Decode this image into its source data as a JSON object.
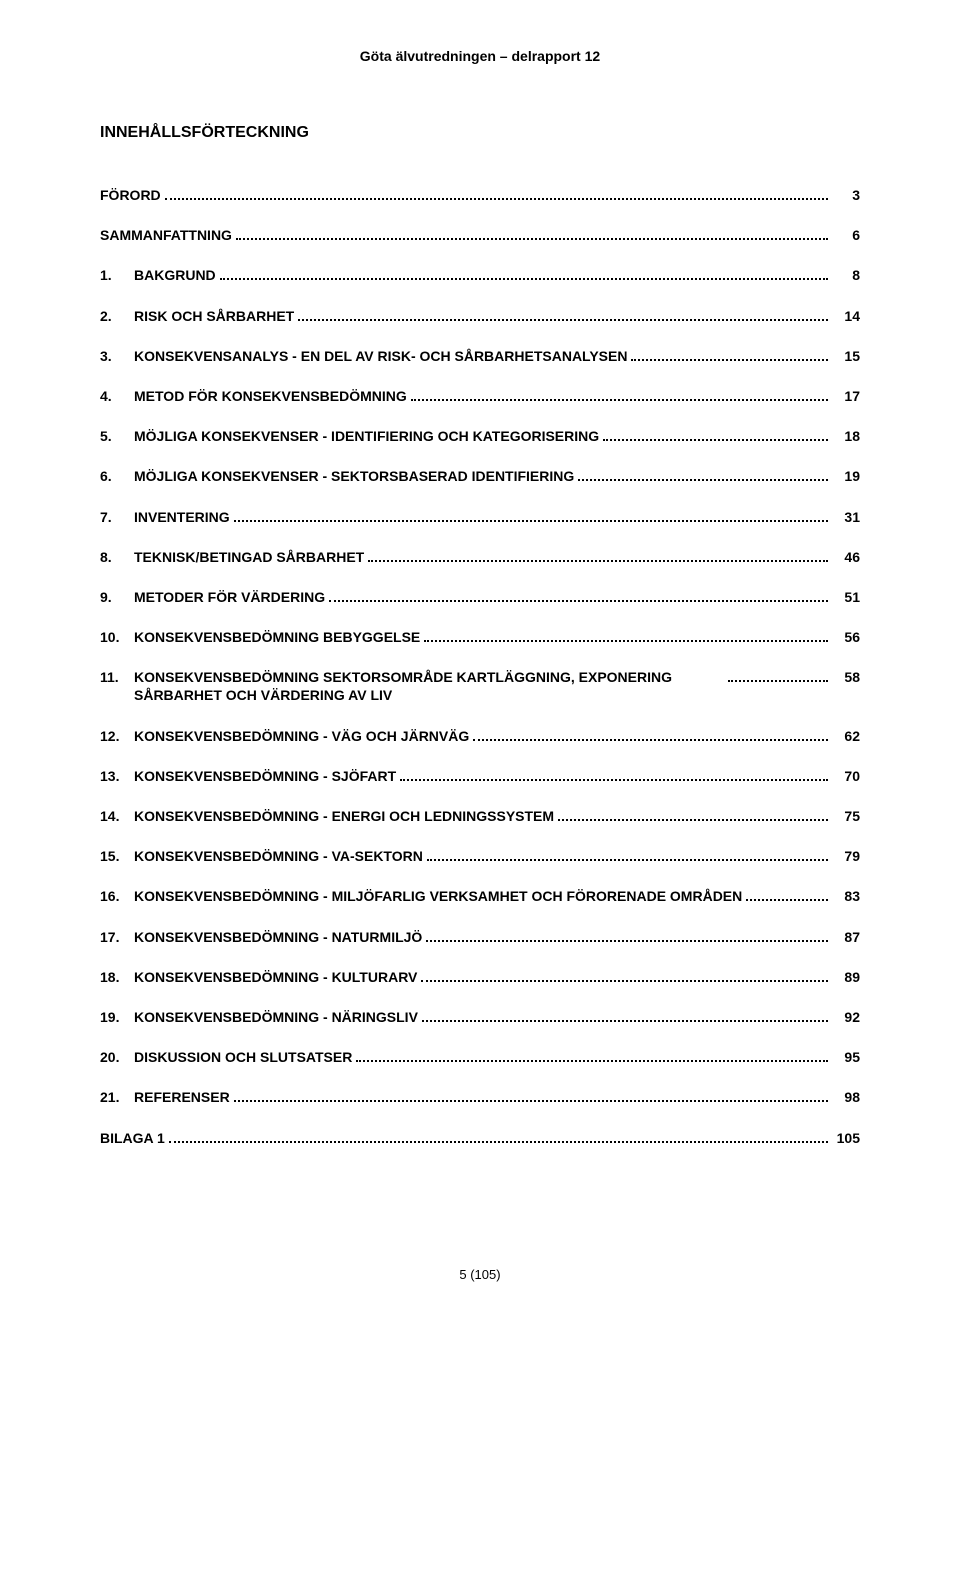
{
  "header": "Göta älvutredningen – delrapport 12",
  "title": "INNEHÅLLSFÖRTECKNING",
  "footer": "5 (105)",
  "toc": [
    {
      "num": "",
      "text": "FÖRORD",
      "page": "3",
      "noNum": true
    },
    {
      "num": "",
      "text": "SAMMANFATTNING",
      "page": "6",
      "noNum": true
    },
    {
      "num": "1.",
      "text": "BAKGRUND",
      "page": "8"
    },
    {
      "num": "2.",
      "text": "RISK OCH SÅRBARHET",
      "page": "14"
    },
    {
      "num": "3.",
      "text": "KONSEKVENSANALYS - EN DEL AV RISK- OCH SÅRBARHETSANALYSEN",
      "page": "15"
    },
    {
      "num": "4.",
      "text": "METOD FÖR KONSEKVENSBEDÖMNING",
      "page": "17"
    },
    {
      "num": "5.",
      "text": "MÖJLIGA KONSEKVENSER - IDENTIFIERING OCH KATEGORISERING",
      "page": "18"
    },
    {
      "num": "6.",
      "text": "MÖJLIGA KONSEKVENSER - SEKTORSBASERAD IDENTIFIERING",
      "page": "19"
    },
    {
      "num": "7.",
      "text": "INVENTERING",
      "page": "31"
    },
    {
      "num": "8.",
      "text": "TEKNISK/BETINGAD SÅRBARHET",
      "page": "46"
    },
    {
      "num": "9.",
      "text": "METODER FÖR VÄRDERING",
      "page": "51"
    },
    {
      "num": "10.",
      "text": "KONSEKVENSBEDÖMNING BEBYGGELSE",
      "page": "56"
    },
    {
      "num": "11.",
      "text": "KONSEKVENSBEDÖMNING SEKTORSOMRÅDE KARTLÄGGNING, EXPONERING SÅRBARHET OCH VÄRDERING AV LIV",
      "page": "58",
      "multiline": true
    },
    {
      "num": "12.",
      "text": "KONSEKVENSBEDÖMNING - VÄG OCH JÄRNVÄG",
      "page": "62"
    },
    {
      "num": "13.",
      "text": "KONSEKVENSBEDÖMNING - SJÖFART",
      "page": "70"
    },
    {
      "num": "14.",
      "text": "KONSEKVENSBEDÖMNING - ENERGI OCH LEDNINGSSYSTEM",
      "page": "75"
    },
    {
      "num": "15.",
      "text": "KONSEKVENSBEDÖMNING - VA-SEKTORN",
      "page": "79"
    },
    {
      "num": "16.",
      "text": "KONSEKVENSBEDÖMNING - MILJÖFARLIG VERKSAMHET OCH FÖRORENADE OMRÅDEN",
      "page": "83"
    },
    {
      "num": "17.",
      "text": "KONSEKVENSBEDÖMNING - NATURMILJÖ",
      "page": "87"
    },
    {
      "num": "18.",
      "text": "KONSEKVENSBEDÖMNING - KULTURARV",
      "page": "89"
    },
    {
      "num": "19.",
      "text": "KONSEKVENSBEDÖMNING - NÄRINGSLIV",
      "page": "92"
    },
    {
      "num": "20.",
      "text": "DISKUSSION OCH SLUTSATSER",
      "page": "95"
    },
    {
      "num": "21.",
      "text": "REFERENSER",
      "page": "98"
    },
    {
      "num": "",
      "text": "BILAGA 1",
      "page": "105",
      "noNum": true
    }
  ]
}
